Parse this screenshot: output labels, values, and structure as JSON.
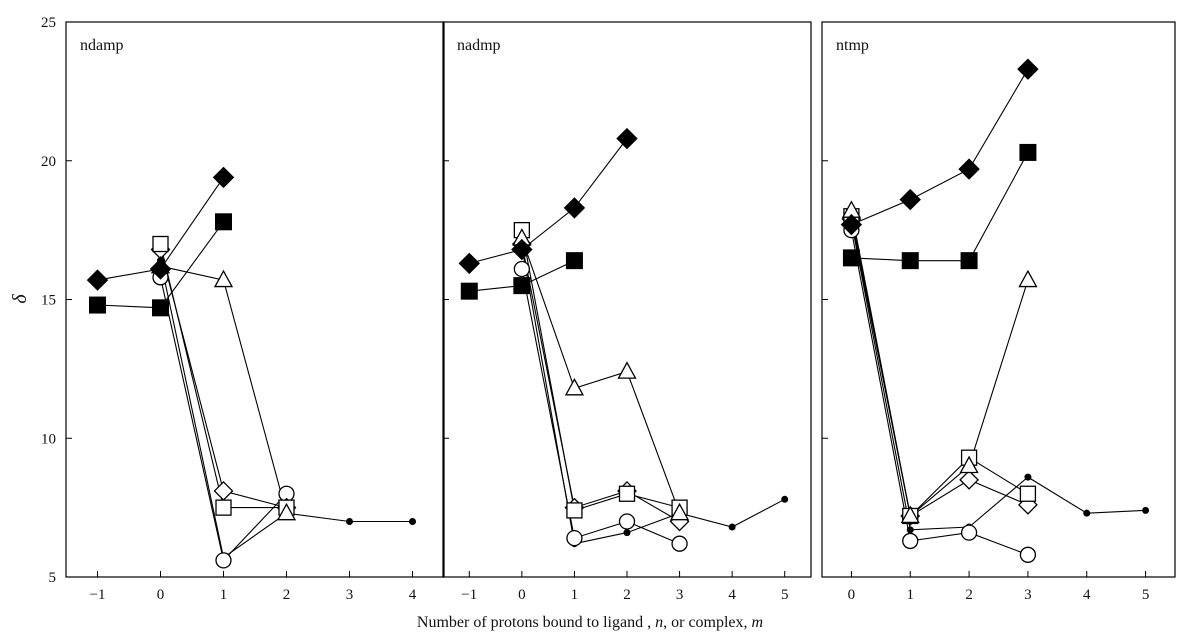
{
  "chart_data": {
    "type": "line",
    "title": "",
    "ylabel": "δ",
    "xlabel": {
      "prefix": "Number of protons bound to ligand , ",
      "n": "n",
      "middle": ", or complex, ",
      "m": "m"
    },
    "ylim": [
      5,
      25
    ],
    "yticks": [
      "5",
      "10",
      "15",
      "20",
      "25"
    ],
    "grid": false,
    "panels": [
      {
        "label": "ndamp",
        "xlim": [
          -1.5,
          4.5
        ],
        "xticks": [
          "-1",
          "0",
          "1",
          "2",
          "3",
          "4"
        ],
        "series": [
          {
            "marker": "filled-diamond",
            "points": [
              [
                -1,
                15.7
              ],
              [
                0,
                16.1
              ],
              [
                1,
                19.4
              ]
            ]
          },
          {
            "marker": "filled-square",
            "points": [
              [
                -1,
                14.8
              ],
              [
                0,
                14.7
              ],
              [
                1,
                17.8
              ]
            ]
          },
          {
            "marker": "open-triangle",
            "points": [
              [
                0,
                16.2
              ],
              [
                1,
                15.7
              ],
              [
                2,
                7.3
              ]
            ]
          },
          {
            "marker": "open-square",
            "points": [
              [
                0,
                17.0
              ],
              [
                1,
                7.5
              ],
              [
                2,
                7.5
              ]
            ]
          },
          {
            "marker": "open-diamond",
            "points": [
              [
                0,
                16.8
              ],
              [
                1,
                8.1
              ],
              [
                2,
                7.5
              ]
            ]
          },
          {
            "marker": "open-circle",
            "points": [
              [
                0,
                15.8
              ],
              [
                1,
                5.6
              ],
              [
                2,
                8.0
              ]
            ]
          },
          {
            "marker": "small-dot",
            "points": [
              [
                0,
                16.4
              ],
              [
                1,
                5.7
              ],
              [
                2,
                7.3
              ],
              [
                3,
                7.0
              ],
              [
                4,
                7.0
              ]
            ]
          }
        ]
      },
      {
        "label": "nadmp",
        "xlim": [
          -1.5,
          5.5
        ],
        "xticks": [
          "-1",
          "0",
          "1",
          "2",
          "3",
          "4",
          "5"
        ],
        "series": [
          {
            "marker": "filled-diamond",
            "points": [
              [
                -1,
                16.3
              ],
              [
                0,
                16.8
              ],
              [
                1,
                18.3
              ],
              [
                2,
                20.8
              ]
            ]
          },
          {
            "marker": "filled-square",
            "points": [
              [
                -1,
                15.3
              ],
              [
                0,
                15.5
              ],
              [
                1,
                16.4
              ]
            ]
          },
          {
            "marker": "open-triangle",
            "points": [
              [
                0,
                17.2
              ],
              [
                1,
                11.8
              ],
              [
                2,
                12.4
              ],
              [
                3,
                7.3
              ]
            ]
          },
          {
            "marker": "open-square",
            "points": [
              [
                0,
                17.5
              ],
              [
                1,
                7.4
              ],
              [
                2,
                8.0
              ],
              [
                3,
                7.5
              ]
            ]
          },
          {
            "marker": "open-diamond",
            "points": [
              [
                0,
                17.0
              ],
              [
                1,
                7.5
              ],
              [
                2,
                8.1
              ],
              [
                3,
                7.0
              ]
            ]
          },
          {
            "marker": "open-circle",
            "points": [
              [
                0,
                16.1
              ],
              [
                1,
                6.4
              ],
              [
                2,
                7.0
              ],
              [
                3,
                6.2
              ]
            ]
          },
          {
            "marker": "small-dot",
            "points": [
              [
                0,
                16.9
              ],
              [
                1,
                6.2
              ],
              [
                2,
                6.6
              ],
              [
                3,
                7.3
              ],
              [
                4,
                6.8
              ],
              [
                5,
                7.8
              ]
            ]
          }
        ]
      },
      {
        "label": "ntmp",
        "xlim": [
          -0.5,
          5.5
        ],
        "xticks": [
          "0",
          "1",
          "2",
          "3",
          "4",
          "5"
        ],
        "series": [
          {
            "marker": "filled-diamond",
            "points": [
              [
                0,
                17.7
              ],
              [
                1,
                18.6
              ],
              [
                2,
                19.7
              ],
              [
                3,
                23.3
              ]
            ]
          },
          {
            "marker": "filled-square",
            "points": [
              [
                0,
                16.5
              ],
              [
                1,
                16.4
              ],
              [
                2,
                16.4
              ],
              [
                3,
                20.3
              ]
            ]
          },
          {
            "marker": "open-triangle",
            "points": [
              [
                0,
                18.2
              ],
              [
                1,
                7.2
              ],
              [
                2,
                9.0
              ],
              [
                3,
                15.7
              ]
            ]
          },
          {
            "marker": "open-square",
            "points": [
              [
                0,
                18.0
              ],
              [
                1,
                7.2
              ],
              [
                2,
                9.3
              ],
              [
                3,
                8.0
              ]
            ]
          },
          {
            "marker": "open-diamond",
            "points": [
              [
                0,
                17.9
              ],
              [
                1,
                7.2
              ],
              [
                2,
                8.5
              ],
              [
                3,
                7.6
              ]
            ]
          },
          {
            "marker": "open-circle",
            "points": [
              [
                0,
                17.5
              ],
              [
                1,
                6.3
              ],
              [
                2,
                6.6
              ],
              [
                3,
                5.8
              ]
            ]
          },
          {
            "marker": "small-dot",
            "points": [
              [
                0,
                17.8
              ],
              [
                1,
                6.7
              ],
              [
                2,
                6.8
              ],
              [
                3,
                8.6
              ],
              [
                4,
                7.3
              ],
              [
                5,
                7.4
              ]
            ]
          }
        ]
      }
    ]
  }
}
